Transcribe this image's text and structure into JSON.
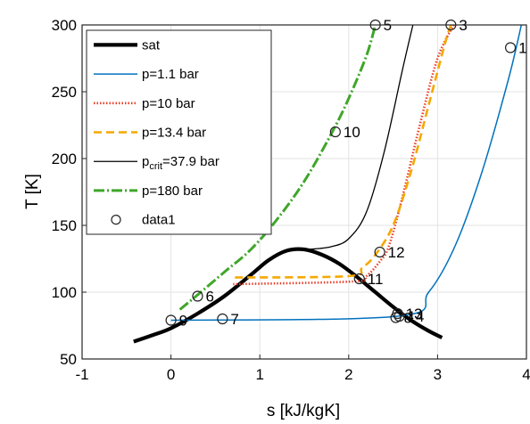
{
  "chart_data": {
    "type": "line",
    "title": "",
    "xlabel": "s [kJ/kgK]",
    "ylabel": "T [K]",
    "xlim": [
      -1,
      4
    ],
    "ylim": [
      50,
      300
    ],
    "xticks": [
      "-1",
      "0",
      "1",
      "2",
      "3",
      "4"
    ],
    "yticks": [
      "50",
      "100",
      "150",
      "200",
      "250",
      "300"
    ],
    "grid": true,
    "legend_position": "top-left",
    "series": [
      {
        "name": "sat",
        "legend": {
          "label": "sat"
        },
        "color": "#000000",
        "style": "solid",
        "points": [
          [
            -0.42,
            63
          ],
          [
            -0.2,
            68
          ],
          [
            0.0,
            73
          ],
          [
            0.3,
            84
          ],
          [
            0.6,
            97
          ],
          [
            0.9,
            113
          ],
          [
            1.1,
            124
          ],
          [
            1.3,
            131
          ],
          [
            1.5,
            132
          ],
          [
            1.7,
            128
          ],
          [
            1.9,
            121
          ],
          [
            2.1,
            111
          ],
          [
            2.3,
            100
          ],
          [
            2.5,
            89
          ],
          [
            2.7,
            79
          ],
          [
            2.9,
            71
          ],
          [
            3.05,
            66
          ]
        ]
      },
      {
        "name": "p=1.1 bar",
        "legend": {
          "label": "p=1.1 bar"
        },
        "color": "#0072BD",
        "style": "solid",
        "points": [
          [
            0.0,
            79
          ],
          [
            2.55,
            82
          ],
          [
            2.9,
            100
          ],
          [
            3.2,
            135
          ],
          [
            3.5,
            190
          ],
          [
            3.8,
            260
          ],
          [
            3.95,
            302
          ]
        ]
      },
      {
        "name": "p=10 bar",
        "legend": {
          "label": "p=10 bar"
        },
        "color": "#E8402A",
        "style": "dotted",
        "points": [
          [
            0.7,
            106
          ],
          [
            2.05,
            108
          ],
          [
            2.2,
            112
          ],
          [
            2.35,
            123
          ],
          [
            2.45,
            134
          ],
          [
            2.6,
            170
          ],
          [
            2.8,
            225
          ],
          [
            3.0,
            275
          ],
          [
            3.2,
            302
          ]
        ]
      },
      {
        "name": "p=13.4 bar",
        "legend": {
          "label": "p=13.4 bar"
        },
        "color": "#F5A800",
        "style": "dashed",
        "points": [
          [
            0.72,
            111
          ],
          [
            2.0,
            112
          ],
          [
            2.15,
            118
          ],
          [
            2.3,
            128
          ],
          [
            2.5,
            150
          ],
          [
            2.7,
            190
          ],
          [
            2.9,
            240
          ],
          [
            3.1,
            290
          ],
          [
            3.17,
            302
          ]
        ]
      },
      {
        "name": "p_crit=37.9 bar",
        "legend": {
          "prefix": "p",
          "sub": "crit",
          "suffix": "=37.9 bar"
        },
        "color": "#000000",
        "style": "solid-thin",
        "points": [
          [
            1.55,
            132
          ],
          [
            1.8,
            134
          ],
          [
            2.0,
            140
          ],
          [
            2.2,
            160
          ],
          [
            2.4,
            205
          ],
          [
            2.6,
            265
          ],
          [
            2.73,
            302
          ]
        ]
      },
      {
        "name": "p=180 bar",
        "legend": {
          "label": "p=180 bar"
        },
        "color": "#3FA62A",
        "style": "dashdot",
        "points": [
          [
            0.1,
            87
          ],
          [
            0.3,
            98
          ],
          [
            0.6,
            115
          ],
          [
            0.9,
            132
          ],
          [
            1.2,
            155
          ],
          [
            1.5,
            183
          ],
          [
            1.8,
            218
          ],
          [
            2.0,
            245
          ],
          [
            2.2,
            277
          ],
          [
            2.3,
            300
          ]
        ]
      }
    ],
    "markers": {
      "name": "data1",
      "legend": {
        "label": "data1"
      },
      "points": [
        {
          "label": "5",
          "x": 2.3,
          "y": 300
        },
        {
          "label": "3",
          "x": 3.15,
          "y": 300
        },
        {
          "label": "1",
          "x": 3.82,
          "y": 283
        },
        {
          "label": "10",
          "x": 1.85,
          "y": 220
        },
        {
          "label": "12",
          "x": 2.35,
          "y": 130
        },
        {
          "label": "11",
          "x": 2.12,
          "y": 110
        },
        {
          "label": "6",
          "x": 0.3,
          "y": 97
        },
        {
          "label": "13",
          "x": 2.55,
          "y": 84
        },
        {
          "label": "14",
          "x": 2.57,
          "y": 82
        },
        {
          "label": "8",
          "x": 2.53,
          "y": 81
        },
        {
          "label": "9",
          "x": 0.0,
          "y": 79
        },
        {
          "label": "7",
          "x": 0.58,
          "y": 80
        }
      ]
    }
  }
}
